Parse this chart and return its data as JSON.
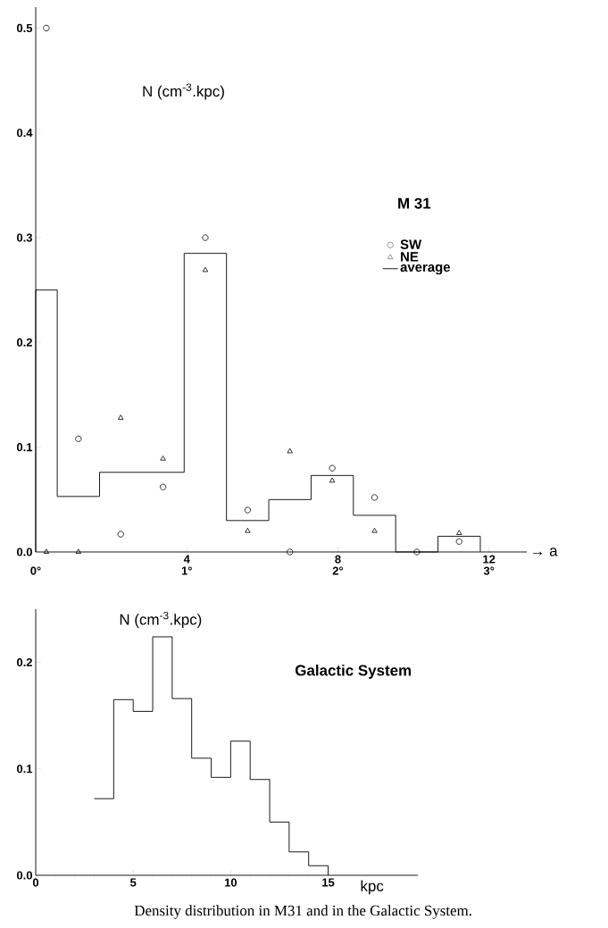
{
  "chart_data": [
    {
      "type": "histogram",
      "title": "M 31",
      "ylabel": "N (cm$^{-3}$.kpc)",
      "xlabel": "→ a",
      "xlim": [
        0,
        13
      ],
      "ylim": [
        0,
        0.52
      ],
      "xticks": [
        4,
        8,
        12
      ],
      "x2lim": [
        0,
        3.25
      ],
      "x2ticks": [
        {
          "value": 0,
          "label": "0°"
        },
        {
          "value": 1,
          "label": "1°"
        },
        {
          "value": 2,
          "label": "2°"
        },
        {
          "value": 3,
          "label": "3°"
        }
      ],
      "yticks": [
        {
          "value": 0,
          "label": "0.0"
        },
        {
          "value": 0.1,
          "label": "0.1"
        },
        {
          "value": 0.2,
          "label": "0.2"
        },
        {
          "value": 0.3,
          "label": "0.3"
        },
        {
          "value": 0.4,
          "label": "0.4"
        },
        {
          "value": 0.5,
          "label": "0.5"
        }
      ],
      "legend": "right",
      "grid": false,
      "series": [
        {
          "name": "SW",
          "type": "scatter",
          "marker": "circle",
          "color": "#000000",
          "x": [
            0.28,
            1.13,
            2.25,
            3.37,
            4.49,
            5.61,
            6.73,
            7.85,
            8.97,
            10.09,
            11.21
          ],
          "values": [
            0.5,
            0.108,
            0.017,
            0.062,
            0.3,
            0.04,
            0.0,
            0.08,
            0.052,
            0.0,
            0.01
          ]
        },
        {
          "name": "NE",
          "type": "scatter",
          "marker": "triangle",
          "color": "#000000",
          "x": [
            0.28,
            1.13,
            2.25,
            3.37,
            4.49,
            5.61,
            6.73,
            7.85,
            8.97,
            11.21
          ],
          "values": [
            0.0,
            0.0,
            0.128,
            0.089,
            0.269,
            0.02,
            0.096,
            0.068,
            0.02,
            0.018
          ]
        },
        {
          "name": "average",
          "type": "histogram",
          "color": "#000000",
          "bins": [
            0,
            0.57,
            1.69,
            2.81,
            3.93,
            5.05,
            6.17,
            7.29,
            8.41,
            9.53,
            10.65,
            11.77
          ],
          "values": [
            0.25,
            0.053,
            0.076,
            0.076,
            0.285,
            0.03,
            0.05,
            0.073,
            0.035,
            0,
            0.015
          ]
        }
      ]
    },
    {
      "type": "step",
      "title": "Galactic System",
      "ylabel": "N (cm$^{-3}$.kpc)",
      "xlabel": "kpc",
      "color": "#000000",
      "xlim": [
        0,
        19.6
      ],
      "ylim": [
        0,
        0.25
      ],
      "xticks": [
        0,
        5,
        10,
        15
      ],
      "yticks": [
        {
          "value": 0,
          "label": "0.0"
        },
        {
          "value": 0.1,
          "label": "0.1"
        },
        {
          "value": 0.2,
          "label": "0.2"
        }
      ],
      "x": [
        3,
        4,
        5,
        6,
        7,
        8,
        9,
        10,
        11,
        12,
        13,
        14,
        15
      ],
      "values": [
        0.072,
        0.165,
        0.154,
        0.224,
        0.166,
        0.11,
        0.092,
        0.126,
        0.09,
        0.05,
        0.022,
        0.009,
        0
      ],
      "annotations": [
        "Density distribution in M31 and in the Galactic System."
      ]
    }
  ]
}
